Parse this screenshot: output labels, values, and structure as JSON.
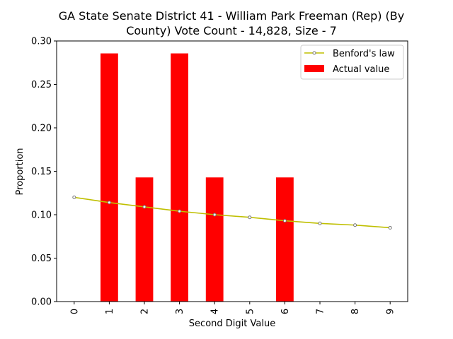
{
  "chart_data": {
    "type": "bar",
    "title_lines": [
      "GA State Senate District 41 - William Park Freeman (Rep) (By",
      "County) Vote Count - 14,828, Size - 7"
    ],
    "xlabel": "Second Digit Value",
    "ylabel": "Proportion",
    "categories": [
      "0",
      "1",
      "2",
      "3",
      "4",
      "5",
      "6",
      "7",
      "8",
      "9"
    ],
    "ylim": [
      0,
      0.3
    ],
    "yticks": [
      "0.00",
      "0.05",
      "0.10",
      "0.15",
      "0.20",
      "0.25",
      "0.30"
    ],
    "series": [
      {
        "name": "Actual value",
        "kind": "bar",
        "color": "#ff0000",
        "values": [
          0,
          0.2857,
          0.1429,
          0.2857,
          0.1429,
          0,
          0.1429,
          0,
          0,
          0
        ]
      },
      {
        "name": "Benford's law",
        "kind": "line",
        "color": "#bfbf00",
        "values": [
          0.12,
          0.114,
          0.109,
          0.104,
          0.1,
          0.097,
          0.093,
          0.09,
          0.088,
          0.085
        ]
      }
    ],
    "legend": {
      "placement": "top-right",
      "entries": [
        "Benford's law",
        "Actual value"
      ]
    },
    "grid": false
  }
}
